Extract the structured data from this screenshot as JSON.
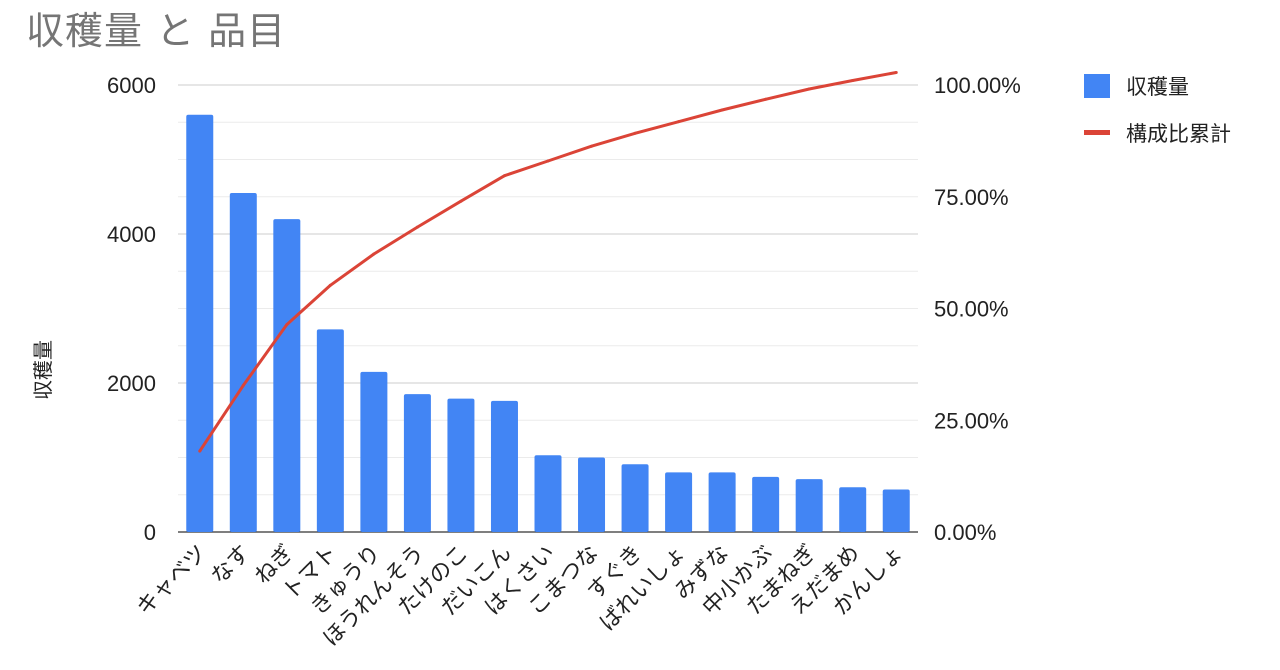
{
  "chart_data": {
    "type": "bar",
    "title": "収穫量 と 品目",
    "ylabel": "収穫量",
    "categories": [
      "キャベツ",
      "なす",
      "ねぎ",
      "トマト",
      "きゅうり",
      "ほうれんそう",
      "たけのこ",
      "だいこん",
      "はくさい",
      "こまつな",
      "すぐき",
      "ばれいしょ",
      "みずな",
      "中小かぶ",
      "たまねぎ",
      "えだまめ",
      "かんしょ"
    ],
    "series": [
      {
        "name": "収穫量",
        "type": "bar",
        "axis": "left",
        "color": "#4285f4",
        "values": [
          5600,
          4550,
          4200,
          2720,
          2150,
          1850,
          1790,
          1760,
          1030,
          1000,
          910,
          800,
          800,
          740,
          710,
          600,
          570
        ]
      },
      {
        "name": "構成比累計",
        "type": "line",
        "axis": "right",
        "color": "#db4437",
        "values": [
          0.181,
          0.328,
          0.464,
          0.552,
          0.622,
          0.682,
          0.74,
          0.797,
          0.83,
          0.863,
          0.892,
          0.918,
          0.944,
          0.968,
          0.991,
          1.01,
          1.028
        ]
      }
    ],
    "ylim": [
      0,
      6000
    ],
    "yticks": [
      "0",
      "2000",
      "4000",
      "6000"
    ],
    "y2lim": [
      0,
      1.0
    ],
    "y2ticks": [
      "0.00%",
      "25.00%",
      "50.00%",
      "75.00%",
      "100.00%"
    ],
    "grid": true,
    "legend": "right"
  }
}
